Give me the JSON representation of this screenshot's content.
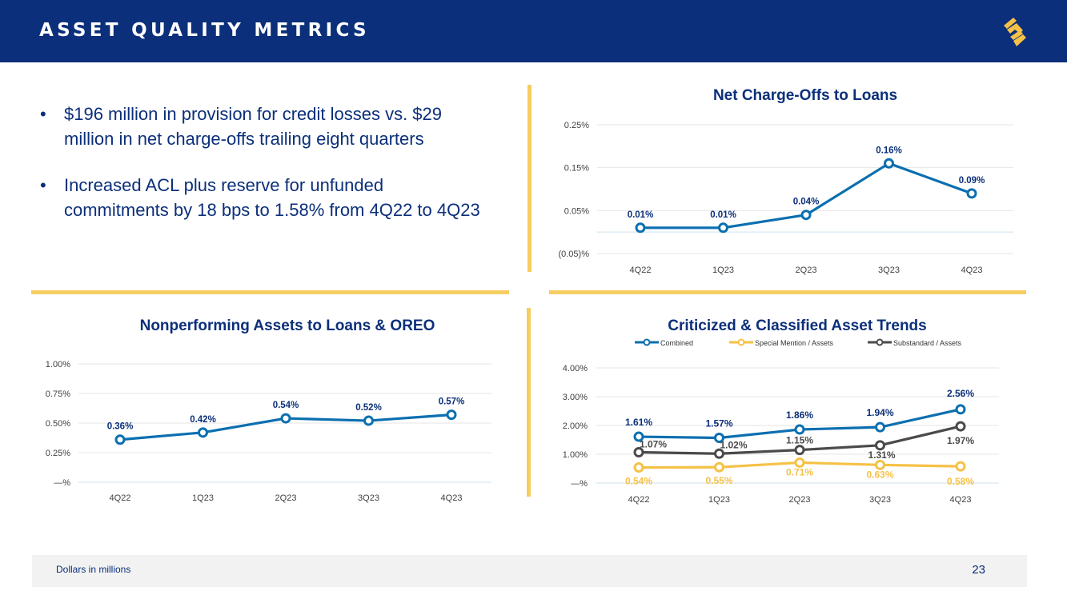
{
  "header": {
    "title": "ASSET QUALITY METRICS",
    "logo": "brand-s-logo"
  },
  "bullets": [
    "$196 million in provision for credit losses vs. $29 million in net charge-offs trailing eight quarters",
    "Increased ACL plus reserve for unfunded commitments by 18 bps to 1.58% from 4Q22 to 4Q23"
  ],
  "bullet_marker": "•",
  "colors": {
    "navy": "#0b2f7a",
    "blue": "#0b6fb0",
    "gold": "#f5c146",
    "gray": "#4a4a4a",
    "divider": "#f5cd61"
  },
  "chart_data": [
    {
      "type": "line",
      "title": "Net Charge-Offs to Loans",
      "categories": [
        "4Q22",
        "1Q23",
        "2Q23",
        "3Q23",
        "4Q23"
      ],
      "series": [
        {
          "name": "Net Charge-Offs to Loans",
          "values": [
            0.01,
            0.01,
            0.04,
            0.16,
            0.09
          ],
          "labels": [
            "0.01%",
            "0.01%",
            "0.04%",
            "0.16%",
            "0.09%"
          ]
        }
      ],
      "yticks": [
        -0.05,
        0.05,
        0.15,
        0.25
      ],
      "ytick_labels": [
        "(0.05)%",
        "0.05%",
        "0.15%",
        "0.25%"
      ],
      "ylim": [
        -0.05,
        0.25
      ],
      "grid": true
    },
    {
      "type": "line",
      "title": "Nonperforming Assets to Loans & OREO",
      "categories": [
        "4Q22",
        "1Q23",
        "2Q23",
        "3Q23",
        "4Q23"
      ],
      "series": [
        {
          "name": "Nonperforming Assets to Loans & OREO",
          "values": [
            0.36,
            0.42,
            0.54,
            0.52,
            0.57
          ],
          "labels": [
            "0.36%",
            "0.42%",
            "0.54%",
            "0.52%",
            "0.57%"
          ]
        }
      ],
      "yticks": [
        0,
        0.25,
        0.5,
        0.75,
        1.0
      ],
      "ytick_labels": [
        "—%",
        "0.25%",
        "0.50%",
        "0.75%",
        "1.00%"
      ],
      "ylim": [
        0,
        1.0
      ],
      "grid": true
    },
    {
      "type": "line",
      "title": "Criticized & Classified Asset Trends",
      "categories": [
        "4Q22",
        "1Q23",
        "2Q23",
        "3Q23",
        "4Q23"
      ],
      "series": [
        {
          "name": "Combined",
          "values": [
            1.61,
            1.57,
            1.86,
            1.94,
            2.56
          ],
          "labels": [
            "1.61%",
            "1.57%",
            "1.86%",
            "1.94%",
            "2.56%"
          ]
        },
        {
          "name": "Special Mention / Assets",
          "values": [
            0.54,
            0.55,
            0.71,
            0.63,
            0.58
          ],
          "labels": [
            "0.54%",
            "0.55%",
            "0.71%",
            "0.63%",
            "0.58%"
          ]
        },
        {
          "name": "Substandard / Assets",
          "values": [
            1.07,
            1.02,
            1.15,
            1.31,
            1.97
          ],
          "labels": [
            "1.07%",
            "1.02%",
            "1.15%",
            "1.31%",
            "1.97%"
          ]
        }
      ],
      "yticks": [
        0,
        1,
        2,
        3,
        4
      ],
      "ytick_labels": [
        "—%",
        "1.00%",
        "2.00%",
        "3.00%",
        "4.00%"
      ],
      "ylim": [
        0,
        4
      ],
      "legend": "top",
      "grid": true
    }
  ],
  "footer": {
    "note": "Dollars in millions",
    "page": "23"
  }
}
